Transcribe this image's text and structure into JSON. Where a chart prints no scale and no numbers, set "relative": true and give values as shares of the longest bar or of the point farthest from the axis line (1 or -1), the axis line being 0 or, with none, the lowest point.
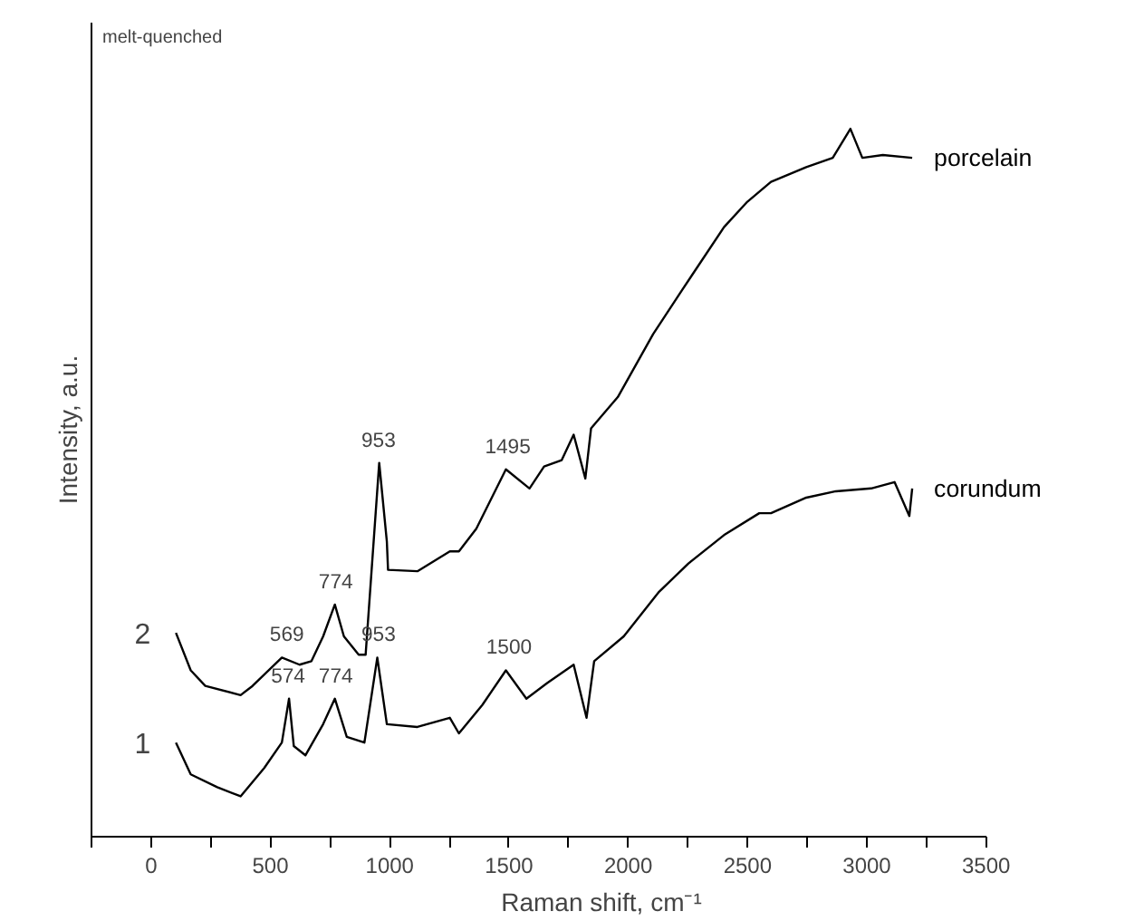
{
  "chart_data": {
    "type": "line",
    "relative": true,
    "xlabel": "Raman shift, cm⁻¹",
    "ylabel": "Intensity, a.u.",
    "xlim": [
      -250,
      3500
    ],
    "xticks": [
      {
        "value": -250,
        "label": null
      },
      0,
      {
        "value": 250,
        "label": null
      },
      500,
      {
        "value": 750,
        "label": null
      },
      1000,
      {
        "value": 1250,
        "label": null
      },
      1500,
      {
        "value": 1750,
        "label": null
      },
      2000,
      {
        "value": 2250,
        "label": null
      },
      2500,
      {
        "value": 2750,
        "label": null
      },
      3000,
      {
        "value": 3250,
        "label": null
      },
      3500
    ],
    "tick_labels": "x",
    "grid": false,
    "legend": false,
    "marker": "none",
    "line_style": "solid",
    "series": [
      {
        "name": "porcelain",
        "color": "#000000",
        "x": [
          104,
          166,
          227,
          375,
          425,
          548,
          622,
          672,
          721,
          770,
          808,
          870,
          899,
          956,
          988,
          993,
          1116,
          1252,
          1290,
          1363,
          1487,
          1586,
          1647,
          1721,
          1771,
          1820,
          1844,
          1956,
          2104,
          2227,
          2401,
          2499,
          2598,
          2746,
          2857,
          2931,
          2981,
          3067,
          3190
        ],
        "values": [
          0.288,
          0.235,
          0.213,
          0.2,
          0.213,
          0.253,
          0.243,
          0.248,
          0.283,
          0.328,
          0.283,
          0.257,
          0.257,
          0.528,
          0.417,
          0.377,
          0.375,
          0.403,
          0.403,
          0.435,
          0.519,
          0.492,
          0.523,
          0.532,
          0.568,
          0.506,
          0.577,
          0.621,
          0.71,
          0.773,
          0.861,
          0.897,
          0.925,
          0.946,
          0.959,
          1.0,
          0.959,
          0.963,
          0.959
        ]
      },
      {
        "name": "corundum",
        "color": "#000000",
        "x": [
          104,
          166,
          277,
          375,
          474,
          548,
          578,
          598,
          647,
          721,
          770,
          820,
          894,
          948,
          988,
          1116,
          1252,
          1290,
          1388,
          1487,
          1573,
          1660,
          1771,
          1825,
          1857,
          1981,
          2129,
          2252,
          2401,
          2549,
          2598,
          2746,
          2870,
          3018,
          3116,
          3178,
          3190
        ],
        "values": [
          0.133,
          0.088,
          0.07,
          0.057,
          0.097,
          0.133,
          0.195,
          0.128,
          0.115,
          0.159,
          0.195,
          0.141,
          0.133,
          0.253,
          0.159,
          0.155,
          0.168,
          0.146,
          0.186,
          0.235,
          0.195,
          0.217,
          0.243,
          0.168,
          0.248,
          0.283,
          0.346,
          0.386,
          0.426,
          0.457,
          0.457,
          0.479,
          0.488,
          0.492,
          0.501,
          0.453,
          0.492
        ]
      }
    ],
    "annotations": [
      "melt-quenched",
      "2",
      "1",
      {
        "text": "569",
        "x": 569,
        "y": 0.253
      },
      {
        "text": "774",
        "x": 774,
        "y": 0.328
      },
      {
        "text": "953",
        "x": 953,
        "y": 0.528
      },
      {
        "text": "1495",
        "x": 1495,
        "y": 0.519
      },
      {
        "text": "574",
        "x": 574,
        "y": 0.195
      },
      {
        "text": "774",
        "x": 774,
        "y": 0.195
      },
      {
        "text": "953",
        "x": 953,
        "y": 0.253
      },
      {
        "text": "1500",
        "x": 1500,
        "y": 0.235
      }
    ]
  }
}
